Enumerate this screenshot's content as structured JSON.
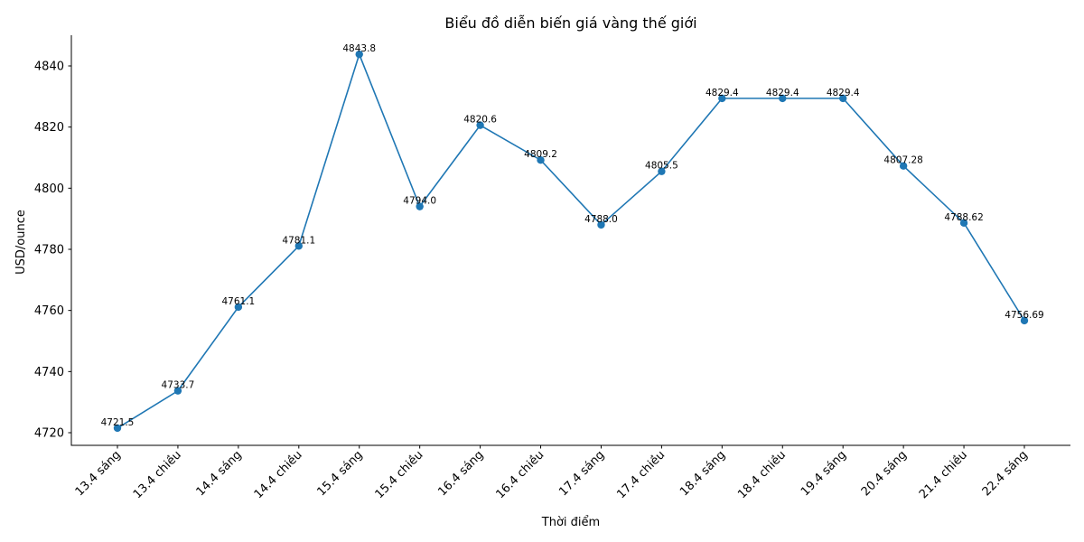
{
  "chart_data": {
    "type": "line",
    "title": "Biểu đồ diễn biến giá vàng thế giới",
    "xlabel": "Thời điểm",
    "ylabel": "USD/ounce",
    "categories": [
      "13.4 sáng",
      "13.4 chiều",
      "14.4 sáng",
      "14.4 chiều",
      "15.4 sáng",
      "15.4 chiều",
      "16.4 sáng",
      "16.4 chiều",
      "17.4 sáng",
      "17.4 chiều",
      "18.4 sáng",
      "18.4 chiều",
      "19.4 sáng",
      "20.4 sáng",
      "21.4 chiều",
      "22.4 sáng"
    ],
    "series": [
      {
        "name": "Giá vàng",
        "values": [
          4721.5,
          4733.7,
          4761.1,
          4781.1,
          4843.8,
          4794.0,
          4820.6,
          4809.2,
          4788.0,
          4805.5,
          4829.4,
          4829.4,
          4829.4,
          4807.28,
          4788.62,
          4756.69
        ],
        "labels": [
          "4721.5",
          "4733.7",
          "4761.1",
          "4781.1",
          "4843.8",
          "4794.0",
          "4820.6",
          "4809.2",
          "4788.0",
          "4805.5",
          "4829.4",
          "4829.4",
          "4829.4",
          "4807.28",
          "4788.62",
          "4756.69"
        ],
        "color": "#1f77b4",
        "marker": "circle"
      }
    ],
    "yticks": [
      4720,
      4740,
      4760,
      4780,
      4800,
      4820,
      4840
    ],
    "ylim": [
      4715.4,
      4850.0
    ],
    "grid": false,
    "legend": false,
    "xtick_rotation": 45
  }
}
